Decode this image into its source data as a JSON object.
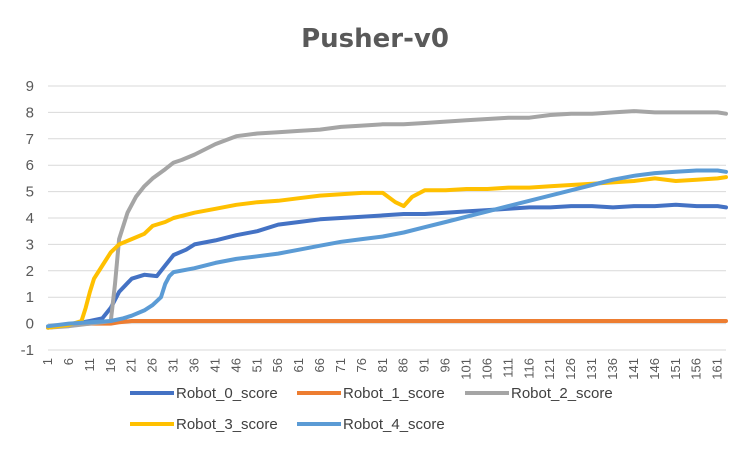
{
  "chart_data": {
    "type": "line",
    "title": "Pusher-v0",
    "xlabel": "",
    "ylabel": "",
    "ylim": [
      -1,
      9
    ],
    "yticks": [
      -1,
      0,
      1,
      2,
      3,
      4,
      5,
      6,
      7,
      8,
      9
    ],
    "xlim": [
      1,
      163
    ],
    "xticks": [
      1,
      6,
      11,
      16,
      21,
      26,
      31,
      36,
      41,
      46,
      51,
      56,
      61,
      66,
      71,
      76,
      81,
      86,
      91,
      96,
      101,
      106,
      111,
      116,
      121,
      126,
      131,
      136,
      141,
      146,
      151,
      156,
      161
    ],
    "grid": true,
    "legend_position": "bottom",
    "series": [
      {
        "name": "Robot_0_score",
        "color": "#4472C4",
        "x": [
          1,
          6,
          11,
          14,
          16,
          18,
          21,
          24,
          27,
          29,
          31,
          34,
          36,
          41,
          46,
          51,
          56,
          61,
          66,
          71,
          76,
          81,
          86,
          91,
          96,
          101,
          106,
          111,
          116,
          121,
          126,
          131,
          136,
          141,
          146,
          151,
          156,
          161,
          163
        ],
        "y": [
          -0.15,
          -0.05,
          0.1,
          0.2,
          0.6,
          1.2,
          1.7,
          1.85,
          1.8,
          2.2,
          2.6,
          2.8,
          3.0,
          3.15,
          3.35,
          3.5,
          3.75,
          3.85,
          3.95,
          4.0,
          4.05,
          4.1,
          4.15,
          4.15,
          4.2,
          4.25,
          4.3,
          4.35,
          4.4,
          4.4,
          4.45,
          4.45,
          4.4,
          4.45,
          4.45,
          4.5,
          4.45,
          4.45,
          4.4
        ]
      },
      {
        "name": "Robot_1_score",
        "color": "#ED7D31",
        "x": [
          1,
          6,
          11,
          16,
          18,
          21,
          31,
          41,
          61,
          81,
          101,
          121,
          141,
          161,
          163
        ],
        "y": [
          -0.15,
          -0.05,
          0.0,
          0.0,
          0.05,
          0.1,
          0.1,
          0.1,
          0.1,
          0.1,
          0.1,
          0.1,
          0.1,
          0.1,
          0.1
        ]
      },
      {
        "name": "Robot_2_score",
        "color": "#A5A5A5",
        "x": [
          1,
          6,
          11,
          14,
          16,
          17,
          18,
          20,
          22,
          24,
          26,
          29,
          31,
          33,
          36,
          41,
          46,
          51,
          56,
          61,
          66,
          71,
          76,
          81,
          86,
          91,
          96,
          101,
          106,
          111,
          116,
          121,
          126,
          131,
          136,
          141,
          146,
          151,
          156,
          161,
          163
        ],
        "y": [
          -0.15,
          -0.1,
          0.0,
          0.05,
          0.1,
          1.5,
          3.2,
          4.2,
          4.8,
          5.2,
          5.5,
          5.85,
          6.1,
          6.2,
          6.4,
          6.8,
          7.1,
          7.2,
          7.25,
          7.3,
          7.35,
          7.45,
          7.5,
          7.55,
          7.55,
          7.6,
          7.65,
          7.7,
          7.75,
          7.8,
          7.8,
          7.9,
          7.95,
          7.95,
          8.0,
          8.05,
          8.0,
          8.0,
          8.0,
          8.0,
          7.95
        ]
      },
      {
        "name": "Robot_3_score",
        "color": "#FFC000",
        "x": [
          1,
          6,
          9,
          10,
          11,
          12,
          14,
          16,
          18,
          21,
          24,
          26,
          29,
          31,
          36,
          41,
          46,
          51,
          56,
          61,
          66,
          71,
          76,
          81,
          84,
          86,
          88,
          91,
          96,
          101,
          106,
          111,
          116,
          121,
          126,
          131,
          136,
          141,
          146,
          151,
          156,
          161,
          163
        ],
        "y": [
          -0.15,
          -0.05,
          0.1,
          0.6,
          1.2,
          1.7,
          2.2,
          2.7,
          3.0,
          3.2,
          3.4,
          3.7,
          3.85,
          4.0,
          4.2,
          4.35,
          4.5,
          4.6,
          4.65,
          4.75,
          4.85,
          4.9,
          4.95,
          4.95,
          4.6,
          4.45,
          4.8,
          5.05,
          5.05,
          5.1,
          5.1,
          5.15,
          5.15,
          5.2,
          5.25,
          5.3,
          5.35,
          5.4,
          5.5,
          5.4,
          5.45,
          5.5,
          5.55
        ]
      },
      {
        "name": "Robot_4_score",
        "color": "#5B9BD5",
        "x": [
          1,
          6,
          11,
          16,
          19,
          21,
          24,
          26,
          28,
          29,
          30,
          31,
          36,
          41,
          46,
          51,
          56,
          61,
          66,
          71,
          76,
          81,
          86,
          91,
          96,
          101,
          106,
          111,
          116,
          121,
          126,
          131,
          136,
          141,
          146,
          151,
          156,
          161,
          163
        ],
        "y": [
          -0.1,
          0.0,
          0.05,
          0.1,
          0.2,
          0.3,
          0.5,
          0.7,
          1.0,
          1.5,
          1.8,
          1.95,
          2.1,
          2.3,
          2.45,
          2.55,
          2.65,
          2.8,
          2.95,
          3.1,
          3.2,
          3.3,
          3.45,
          3.65,
          3.85,
          4.05,
          4.25,
          4.45,
          4.65,
          4.85,
          5.05,
          5.25,
          5.45,
          5.6,
          5.7,
          5.75,
          5.8,
          5.8,
          5.75
        ]
      }
    ]
  }
}
